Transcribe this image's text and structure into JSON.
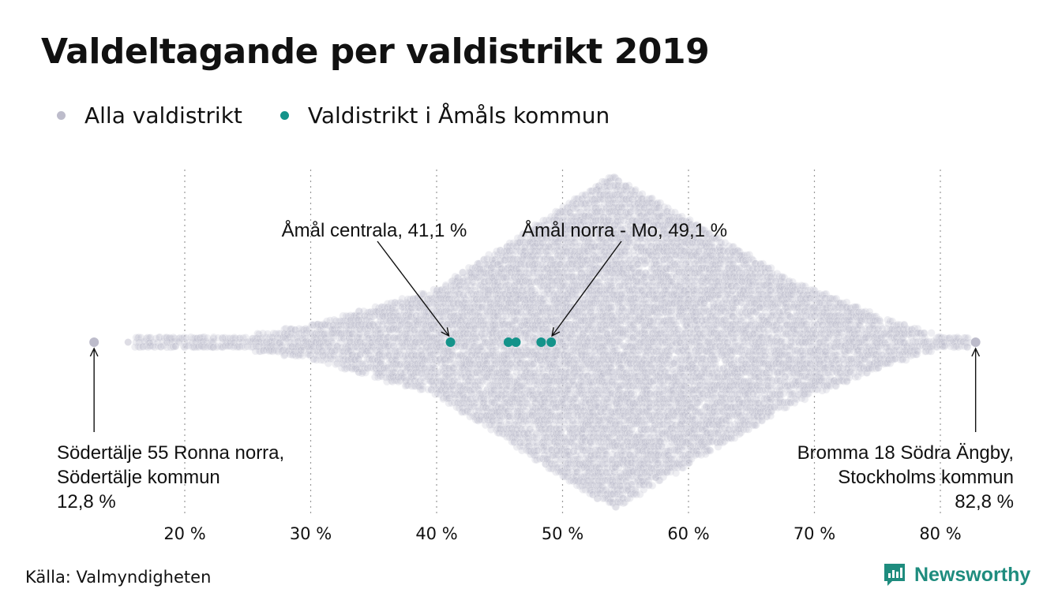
{
  "chart_data": {
    "type": "scatter",
    "title": "Valdeltagande per valdistrikt 2019",
    "legend": [
      {
        "label": "Alla valdistrikt",
        "color": "#bdbccb"
      },
      {
        "label": "Valdistrikt i Åmåls kommun",
        "color": "#14938a"
      }
    ],
    "xlim": [
      12,
      84
    ],
    "xticks": [
      {
        "value": 20,
        "label": "20 %"
      },
      {
        "value": 30,
        "label": "30 %"
      },
      {
        "value": 40,
        "label": "40 %"
      },
      {
        "value": 50,
        "label": "50 %"
      },
      {
        "value": 60,
        "label": "60 %"
      },
      {
        "value": 70,
        "label": "70 %"
      },
      {
        "value": 80,
        "label": "80 %"
      }
    ],
    "grid": true,
    "highlight_series": {
      "name": "Valdistrikt i Åmåls kommun",
      "x": [
        41.1,
        45.7,
        46.3,
        48.3,
        49.1
      ]
    },
    "extremes": [
      12.8,
      82.8
    ],
    "annotations": [
      {
        "lines": [
          "Åmål centrala, 41,1 %"
        ],
        "x": 41.1
      },
      {
        "lines": [
          "Åmål norra - Mo, 49,1 %"
        ],
        "x": 49.1
      },
      {
        "lines": [
          "Södertälje 55 Ronna norra,",
          "Södertälje kommun",
          "12,8 %"
        ],
        "x": 12.8
      },
      {
        "lines": [
          "Bromma 18 Södra Ängby,",
          "Stockholms kommun",
          "82,8 %"
        ],
        "x": 82.8
      }
    ],
    "source": "Källa: Valmyndigheten"
  },
  "brand": {
    "name": "Newsworthy",
    "color": "#1e8c7e"
  }
}
